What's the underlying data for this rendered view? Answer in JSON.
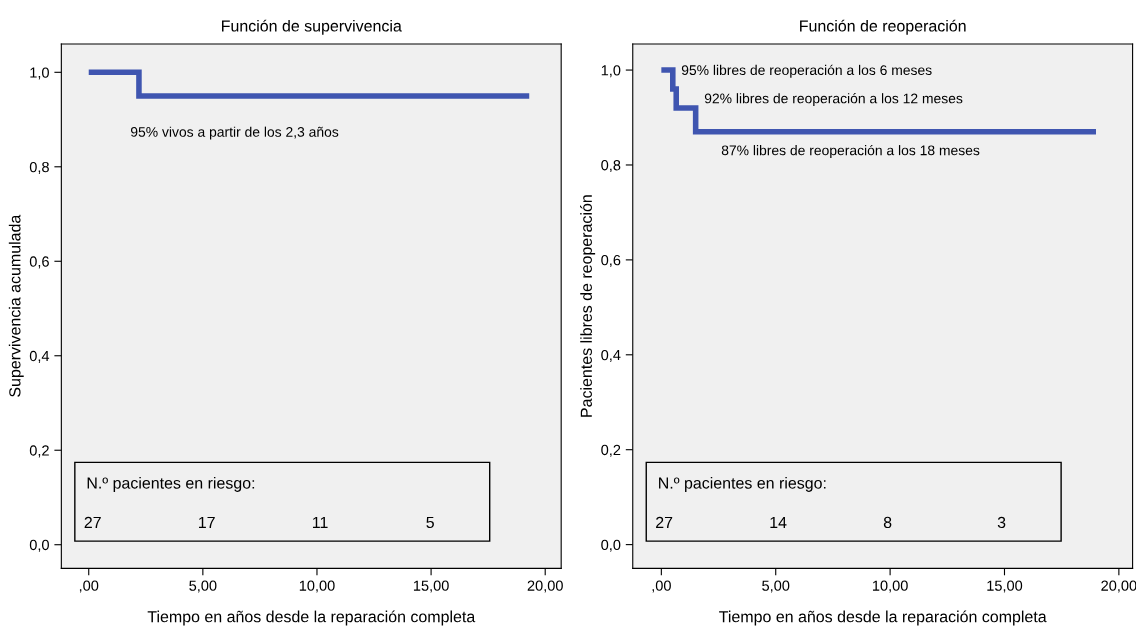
{
  "chart_data": [
    {
      "type": "step",
      "title": "Función de supervivencia",
      "xlabel": "Tiempo en años desde la reparación completa",
      "ylabel": "Supervivencia acumulada",
      "xlim": [
        -1.2,
        20.7
      ],
      "xticks": [
        {
          "value": 0,
          "label": ",00"
        },
        {
          "value": 5,
          "label": "5,00"
        },
        {
          "value": 10,
          "label": "10,00"
        },
        {
          "value": 15,
          "label": "15,00"
        },
        {
          "value": 20,
          "label": "20,00"
        }
      ],
      "ylim": [
        -0.05,
        1.06
      ],
      "yticks": [
        {
          "value": 0,
          "label": "0,0"
        },
        {
          "value": 0.2,
          "label": "0,2"
        },
        {
          "value": 0.4,
          "label": "0,4"
        },
        {
          "value": 0.6,
          "label": "0,6"
        },
        {
          "value": 0.8,
          "label": "0,8"
        },
        {
          "value": 1.0,
          "label": "1,0"
        }
      ],
      "series": [
        {
          "color": "#3f55b0",
          "x": [
            0,
            2.2,
            19.3
          ],
          "values": [
            1.0,
            0.95,
            0.95
          ]
        }
      ],
      "annotations": [
        "95% vivos a partir de los 2,3 años",
        "N.º pacientes en riesgo:",
        "27",
        "17",
        "11",
        "5"
      ],
      "grid": false,
      "legend": false,
      "marker": "none",
      "line_style": "solid"
    },
    {
      "type": "step",
      "title": "Función de reoperación",
      "xlabel": "Tiempo en años desde la reparación completa",
      "ylabel": "Pacientes libres de reoperación",
      "xlim": [
        -1.25,
        20.6
      ],
      "xticks": [
        {
          "value": 0,
          "label": ",00"
        },
        {
          "value": 5,
          "label": "5,00"
        },
        {
          "value": 10,
          "label": "10,00"
        },
        {
          "value": 15,
          "label": "15,00"
        },
        {
          "value": 20,
          "label": "20,00"
        }
      ],
      "ylim": [
        -0.05,
        1.055
      ],
      "yticks": [
        {
          "value": 0,
          "label": "0,0"
        },
        {
          "value": 0.2,
          "label": "0,2"
        },
        {
          "value": 0.4,
          "label": "0,4"
        },
        {
          "value": 0.6,
          "label": "0,6"
        },
        {
          "value": 0.8,
          "label": "0,8"
        },
        {
          "value": 1.0,
          "label": "1,0"
        }
      ],
      "series": [
        {
          "color": "#3f55b0",
          "x": [
            0,
            0.5,
            0.65,
            1.5,
            19.0
          ],
          "values": [
            1.0,
            0.96,
            0.92,
            0.87,
            0.87
          ]
        }
      ],
      "annotations": [
        "95% libres de reoperación a los 6 meses",
        "92% libres de reoperación a los 12 meses",
        "87% libres de reoperación a los 18 meses",
        "N.º pacientes en riesgo:",
        "27",
        "14",
        "8",
        "3"
      ],
      "grid": false,
      "legend": false,
      "marker": "none",
      "line_style": "solid"
    }
  ]
}
